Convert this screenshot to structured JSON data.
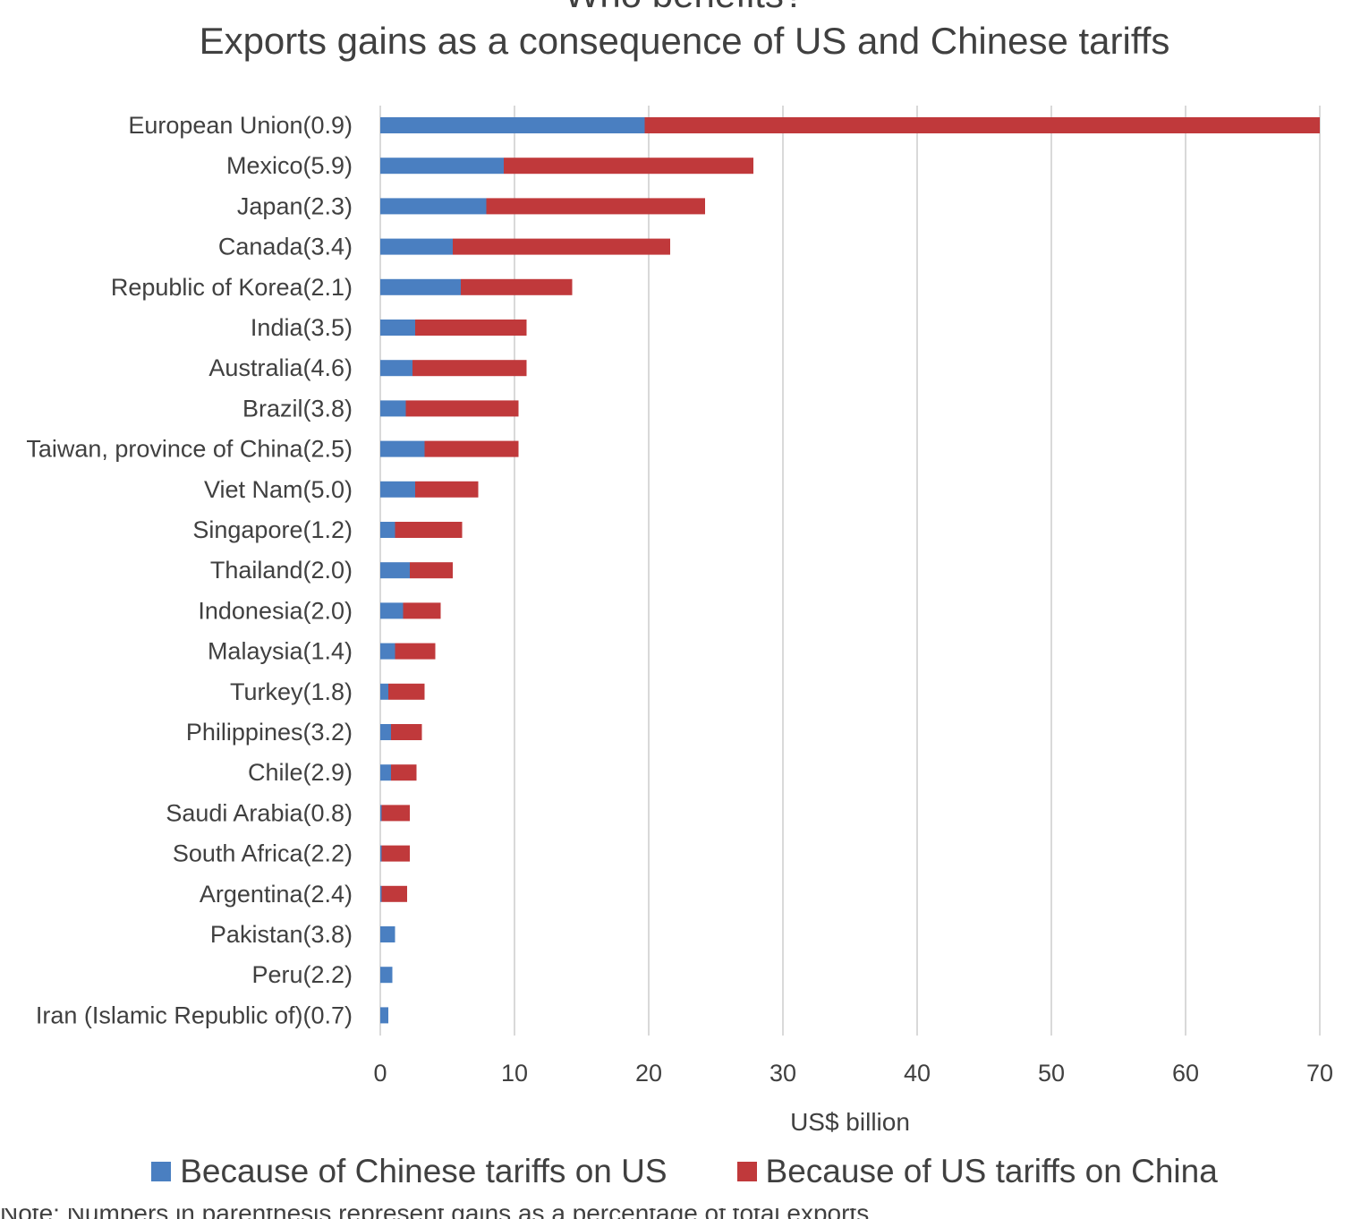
{
  "chart_data": {
    "type": "bar",
    "orientation": "horizontal",
    "stacked": true,
    "title": "Exports gains as a consequence of US and Chinese tariffs",
    "supertitle": "Who benefits?",
    "xlabel": "US$ billion",
    "ylabel": "",
    "xlim": [
      0,
      70
    ],
    "xticks": [
      0,
      10,
      20,
      30,
      40,
      50,
      60,
      70
    ],
    "grid": "vertical",
    "legend_position": "bottom",
    "categories": [
      "European Union(0.9)",
      "Mexico(5.9)",
      "Japan(2.3)",
      "Canada(3.4)",
      "Republic of Korea(2.1)",
      "India(3.5)",
      "Australia(4.6)",
      "Brazil(3.8)",
      "Taiwan, province of China(2.5)",
      "Viet Nam(5.0)",
      "Singapore(1.2)",
      "Thailand(2.0)",
      "Indonesia(2.0)",
      "Malaysia(1.4)",
      "Turkey(1.8)",
      "Philippines(3.2)",
      "Chile(2.9)",
      "Saudi Arabia(0.8)",
      "South Africa(2.2)",
      "Argentina(2.4)",
      "Pakistan(3.8)",
      "Peru(2.2)",
      "Iran (Islamic Republic of)(0.7)"
    ],
    "series": [
      {
        "name": "Because of Chinese tariffs on US",
        "color": "#4a7fc1",
        "values": [
          19.7,
          9.2,
          7.9,
          5.4,
          6.0,
          2.6,
          2.4,
          1.9,
          3.3,
          2.6,
          1.1,
          2.2,
          1.7,
          1.1,
          0.6,
          0.8,
          0.8,
          0.1,
          0.1,
          0.1,
          1.1,
          0.9,
          0.6
        ]
      },
      {
        "name": "Because of US tariffs on China",
        "color": "#c0393b",
        "values": [
          50.3,
          18.6,
          16.3,
          16.2,
          8.3,
          8.3,
          8.5,
          8.4,
          7.0,
          4.7,
          5.0,
          3.2,
          2.8,
          3.0,
          2.7,
          2.3,
          1.9,
          2.1,
          2.1,
          1.9,
          0.0,
          0.0,
          0.0
        ]
      }
    ]
  },
  "footnote": "Note: Numbers in parenthesis represent gains as a percentage of total exports."
}
